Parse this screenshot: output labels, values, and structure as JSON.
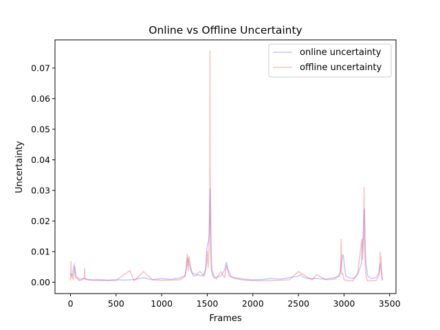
{
  "chart_data": {
    "type": "line",
    "title": "Online vs Offline Uncertainty",
    "xlabel": "Frames",
    "ylabel": "Uncertainty",
    "xlim": [
      -170,
      3570
    ],
    "ylim": [
      -0.0037,
      0.0792
    ],
    "xticks": [
      0,
      500,
      1000,
      1500,
      2000,
      2500,
      3000,
      3500
    ],
    "xtick_labels": [
      "0",
      "500",
      "1000",
      "1500",
      "2000",
      "2500",
      "3000",
      "3500"
    ],
    "yticks": [
      0.0,
      0.01,
      0.02,
      0.03,
      0.04,
      0.05,
      0.06,
      0.07
    ],
    "ytick_labels": [
      "0.00",
      "0.01",
      "0.02",
      "0.03",
      "0.04",
      "0.05",
      "0.06",
      "0.07"
    ],
    "grid": false,
    "legend_position": "top-right",
    "series": [
      {
        "name": "online uncertainty",
        "color": "#0000ff",
        "opacity": 0.22,
        "x": [
          0,
          20,
          40,
          60,
          80,
          100,
          150,
          200,
          300,
          400,
          500,
          600,
          700,
          800,
          900,
          1000,
          1100,
          1200,
          1250,
          1270,
          1285,
          1300,
          1320,
          1350,
          1400,
          1450,
          1480,
          1500,
          1510,
          1520,
          1525,
          1530,
          1535,
          1540,
          1550,
          1580,
          1650,
          1690,
          1710,
          1730,
          1760,
          1800,
          1900,
          2000,
          2100,
          2200,
          2300,
          2400,
          2500,
          2520,
          2550,
          2600,
          2700,
          2800,
          2900,
          2950,
          2975,
          2985,
          2995,
          3005,
          3020,
          3050,
          3100,
          3150,
          3190,
          3200,
          3210,
          3220,
          3225,
          3230,
          3240,
          3260,
          3300,
          3350,
          3380,
          3395,
          3405,
          3415,
          3420
        ],
        "values": [
          0.003,
          0.002,
          0.006,
          0.002,
          0.0015,
          0.001,
          0.0012,
          0.0008,
          0.0009,
          0.0007,
          0.0008,
          0.0007,
          0.0009,
          0.0015,
          0.0008,
          0.0012,
          0.0009,
          0.0014,
          0.002,
          0.004,
          0.008,
          0.006,
          0.004,
          0.002,
          0.0025,
          0.002,
          0.004,
          0.012,
          0.013,
          0.015,
          0.023,
          0.0305,
          0.02,
          0.009,
          0.004,
          0.0015,
          0.002,
          0.004,
          0.0065,
          0.004,
          0.002,
          0.0015,
          0.001,
          0.0008,
          0.0009,
          0.0012,
          0.001,
          0.0015,
          0.002,
          0.0025,
          0.0018,
          0.0012,
          0.0012,
          0.001,
          0.0015,
          0.002,
          0.007,
          0.009,
          0.0085,
          0.005,
          0.002,
          0.0015,
          0.0012,
          0.0025,
          0.006,
          0.012,
          0.015,
          0.0235,
          0.024,
          0.015,
          0.006,
          0.002,
          0.0012,
          0.0015,
          0.003,
          0.006,
          0.004,
          0.0018,
          0.0008
        ]
      },
      {
        "name": "offline uncertainty",
        "color": "#e8443a",
        "opacity": 0.32,
        "x": [
          0,
          5,
          10,
          30,
          45,
          55,
          70,
          100,
          150,
          155,
          160,
          250,
          400,
          500,
          650,
          700,
          800,
          900,
          1000,
          1200,
          1260,
          1280,
          1290,
          1300,
          1330,
          1380,
          1420,
          1470,
          1490,
          1500,
          1510,
          1520,
          1528,
          1530,
          1532,
          1540,
          1545,
          1560,
          1600,
          1650,
          1690,
          1710,
          1740,
          1800,
          1900,
          2000,
          2200,
          2400,
          2500,
          2650,
          2700,
          2800,
          2900,
          2960,
          2970,
          2975,
          2985,
          3000,
          3050,
          3100,
          3150,
          3195,
          3205,
          3215,
          3220,
          3225,
          3230,
          3240,
          3260,
          3300,
          3350,
          3380,
          3390,
          3395,
          3400,
          3405,
          3410,
          3415,
          3420
        ],
        "values": [
          0.0005,
          0.0068,
          0.002,
          0.0008,
          0.005,
          0.0015,
          0.0012,
          0.0005,
          0.0012,
          0.0045,
          0.001,
          0.0006,
          0.0005,
          0.0006,
          0.0038,
          0.0005,
          0.0035,
          0.0008,
          0.0006,
          0.0008,
          0.002,
          0.0092,
          0.004,
          0.0085,
          0.003,
          0.0025,
          0.0035,
          0.002,
          0.0055,
          0.01,
          0.0048,
          0.012,
          0.025,
          0.0755,
          0.038,
          0.015,
          0.004,
          0.002,
          0.001,
          0.0035,
          0.0015,
          0.0055,
          0.002,
          0.0012,
          0.0007,
          0.0005,
          0.0005,
          0.0008,
          0.0035,
          0.0007,
          0.0025,
          0.0008,
          0.001,
          0.003,
          0.014,
          0.0025,
          0.003,
          0.0008,
          0.0005,
          0.0005,
          0.003,
          0.014,
          0.0075,
          0.0165,
          0.031,
          0.012,
          0.008,
          0.002,
          0.0004,
          0.0005,
          0.0005,
          0.002,
          0.0035,
          0.0098,
          0.0055,
          0.0085,
          0.006,
          0.002,
          0.0005
        ]
      }
    ]
  }
}
